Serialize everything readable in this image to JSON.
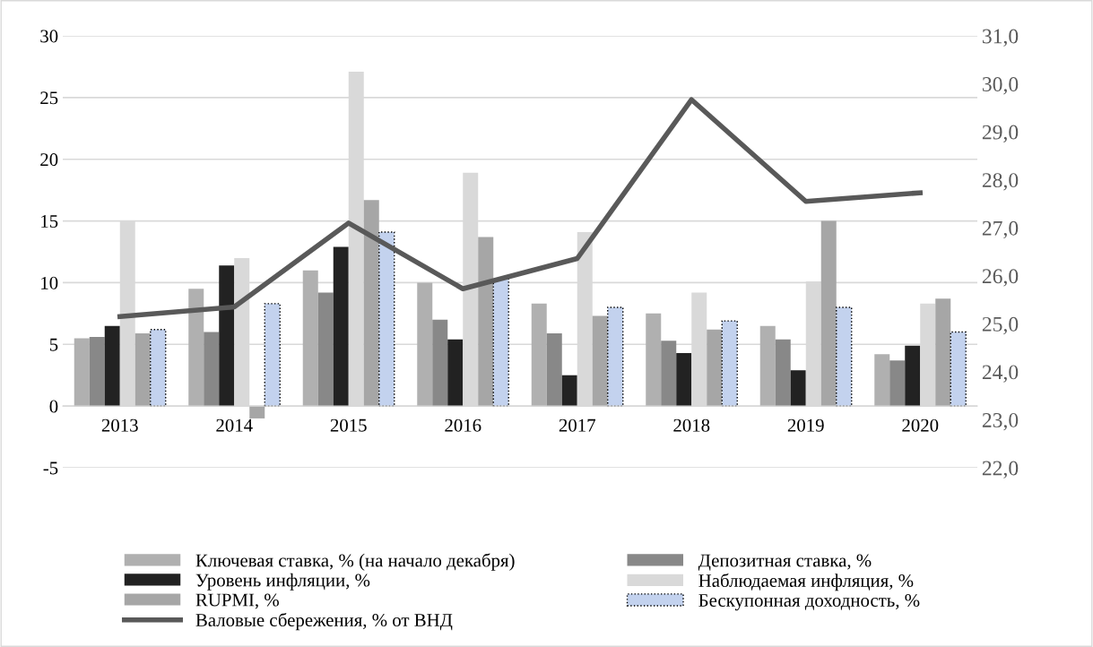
{
  "chart_data": {
    "type": "bar",
    "categories": [
      "2013",
      "2014",
      "2015",
      "2016",
      "2017",
      "2018",
      "2019",
      "2020"
    ],
    "series": [
      {
        "name": "Ключевая ставка, % (на начало декабря)",
        "color": "#b0b0b0",
        "values": [
          5.5,
          9.5,
          11.0,
          10.0,
          8.3,
          7.5,
          6.5,
          4.2
        ]
      },
      {
        "name": "Депозитная ставка, %",
        "color": "#888888",
        "values": [
          5.6,
          6.0,
          9.2,
          7.0,
          5.9,
          5.3,
          5.4,
          3.7
        ]
      },
      {
        "name": "Уровень инфляции, %",
        "color": "#222222",
        "values": [
          6.5,
          11.4,
          12.9,
          5.4,
          2.5,
          4.3,
          2.9,
          4.9
        ]
      },
      {
        "name": "Наблюдаемая инфляция, %",
        "color": "#d9d9d9",
        "values": [
          15.0,
          12.0,
          27.1,
          18.9,
          14.1,
          9.2,
          10.1,
          8.3
        ]
      },
      {
        "name": "RUPMI, %",
        "color": "#a6a6a6",
        "values": [
          5.9,
          -1.0,
          16.7,
          13.7,
          7.3,
          6.2,
          15.0,
          8.7
        ]
      },
      {
        "name": "Бескупонная доходность, %",
        "color": "#c3d2ee",
        "line_style": "dotted",
        "values": [
          6.2,
          8.3,
          14.1,
          10.3,
          8.0,
          6.9,
          8.0,
          6.0
        ]
      },
      {
        "name": "Валовые сбережения, % от ВНД",
        "type": "line",
        "axis": "y2",
        "color": "#595959",
        "values": [
          25.15,
          25.35,
          27.1,
          25.73,
          26.36,
          29.67,
          27.55,
          27.73
        ]
      }
    ],
    "ylim": [
      -5,
      30
    ],
    "yticks": [
      {
        "value": -5,
        "label": "-5"
      },
      0,
      5,
      10,
      15,
      20,
      25,
      30
    ],
    "y2lim": [
      22,
      31
    ],
    "y2ticks": [
      {
        "value": 22,
        "label": "22,0"
      },
      {
        "value": 23,
        "label": "23,0"
      },
      {
        "value": 24,
        "label": "24,0"
      },
      {
        "value": 25,
        "label": "25,0"
      },
      {
        "value": 26,
        "label": "26,0"
      },
      {
        "value": 27,
        "label": "27,0"
      },
      {
        "value": 28,
        "label": "28,0"
      },
      {
        "value": 29,
        "label": "29,0"
      },
      {
        "value": 30,
        "label": "30,0"
      },
      {
        "value": 31,
        "label": "31,0"
      }
    ],
    "grid": "y",
    "legend": "bottom",
    "marker": "none"
  }
}
